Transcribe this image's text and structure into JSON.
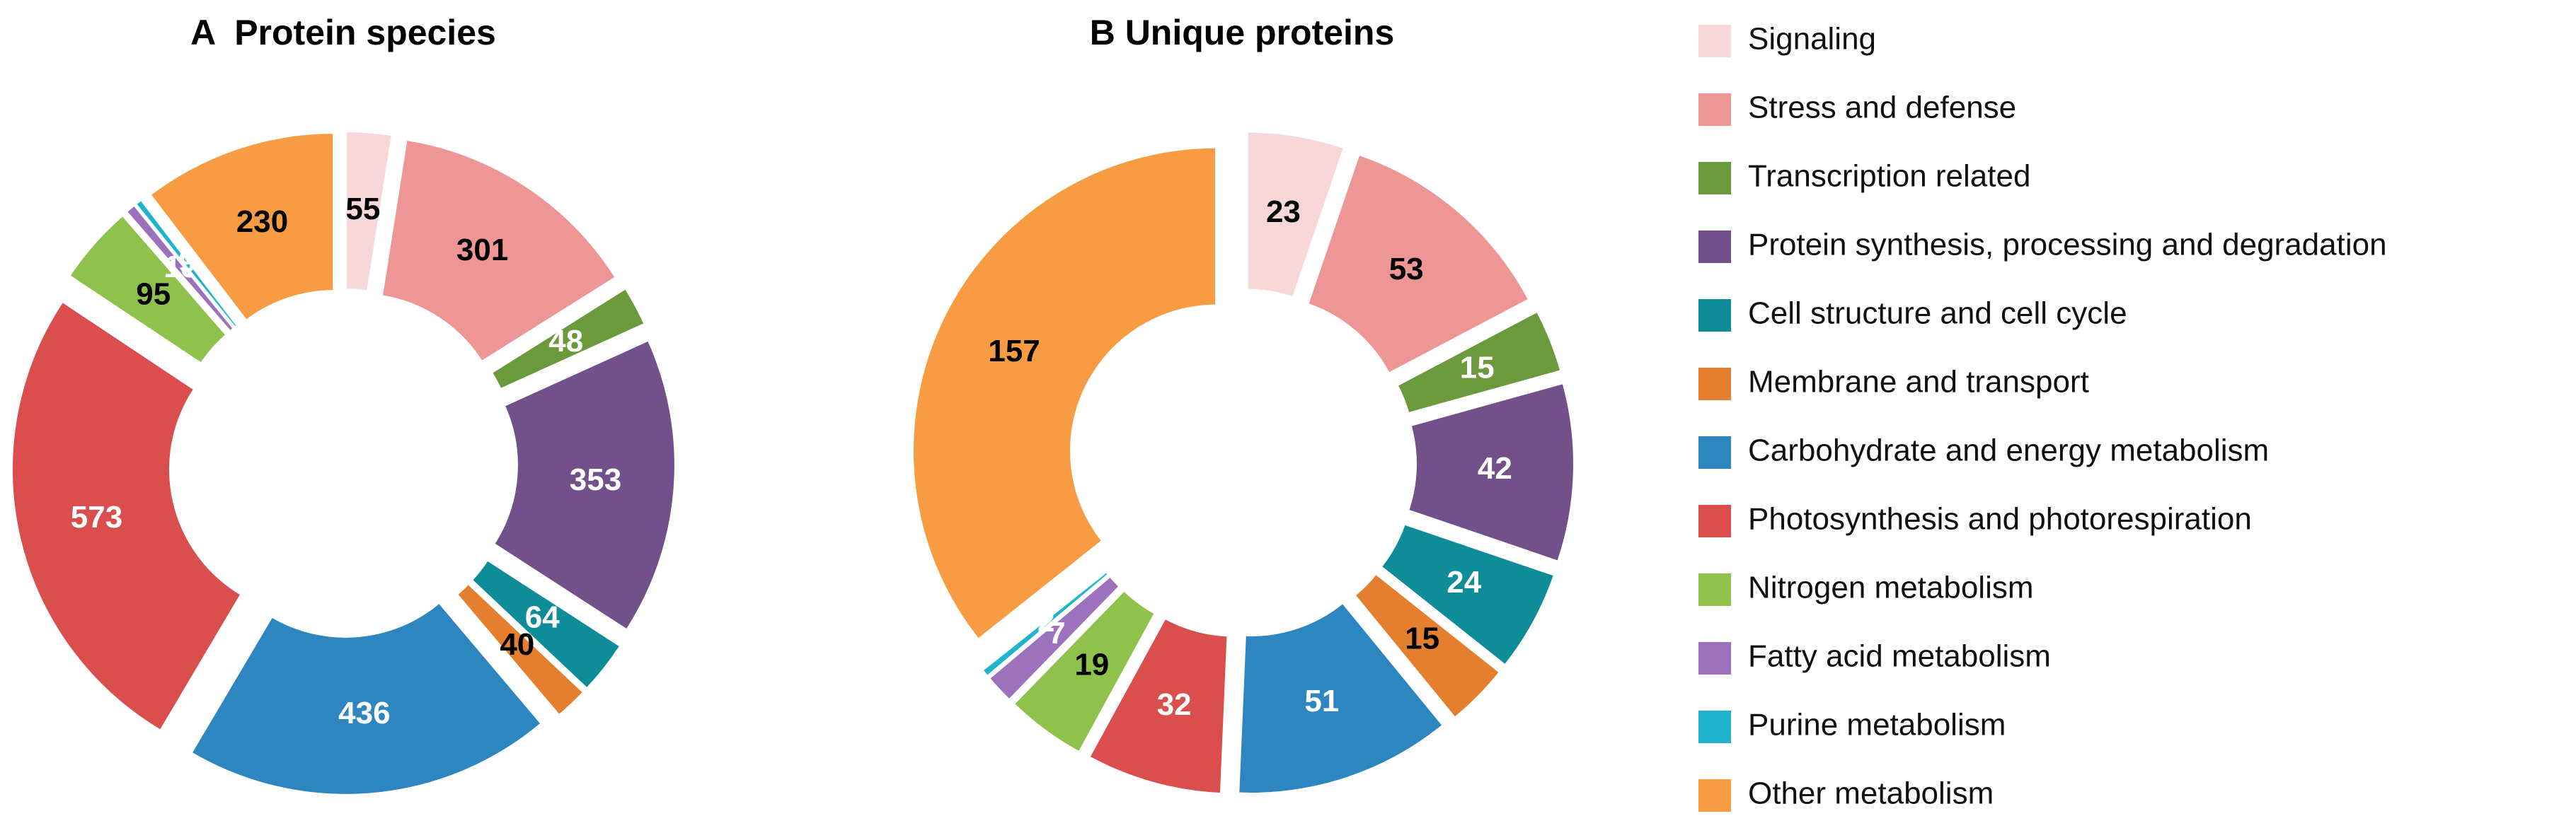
{
  "chart_data": [
    {
      "type": "pie",
      "title": "A  Protein species",
      "categories": [
        "Signaling",
        "Stress and defense",
        "Transcription related",
        "Protein synthesis, processing and degradation",
        "Cell structure and cell cycle",
        "Membrane and transport",
        "Carbohydrate and energy metabolism",
        "Photosynthesis and photorespiration",
        "Nitrogen metabolism",
        "Fatty acid metabolism",
        "Purine metabolism",
        "Other metabolism"
      ],
      "values": [
        55,
        301,
        48,
        353,
        64,
        40,
        436,
        573,
        95,
        13,
        9,
        230
      ],
      "colors": [
        "#f8d7d8",
        "#ee9696",
        "#6b9a3c",
        "#72508a",
        "#0e8d99",
        "#e37f2f",
        "#2e86c1",
        "#db4e4e",
        "#8fc24d",
        "#9d72bc",
        "#1fb3cc",
        "#f79c42"
      ]
    },
    {
      "type": "pie",
      "title": "B Unique proteins",
      "categories": [
        "Signaling",
        "Stress and defense",
        "Transcription related",
        "Protein synthesis, processing and degradation",
        "Cell structure and cell cycle",
        "Membrane and transport",
        "Carbohydrate and energy metabolism",
        "Photosynthesis and photorespiration",
        "Nitrogen metabolism",
        "Fatty acid metabolism",
        "Purine metabolism",
        "Other metabolism"
      ],
      "values": [
        23,
        53,
        15,
        42,
        24,
        15,
        51,
        32,
        19,
        7,
        2,
        157
      ],
      "colors": [
        "#f8d7d8",
        "#ee9696",
        "#6b9a3c",
        "#72508a",
        "#0e8d99",
        "#e37f2f",
        "#2e86c1",
        "#db4e4e",
        "#8fc24d",
        "#9d72bc",
        "#1fb3cc",
        "#f79c42"
      ]
    }
  ]
}
